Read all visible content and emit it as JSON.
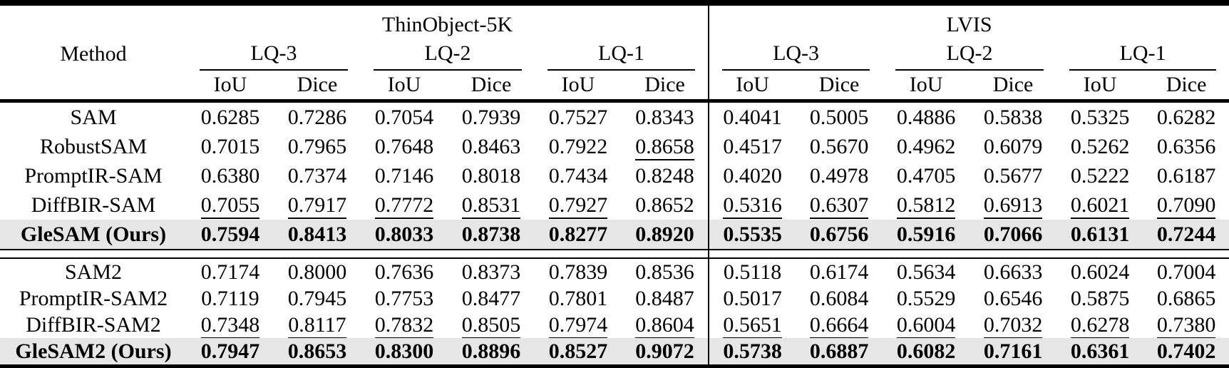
{
  "table": {
    "header": {
      "method": "Method",
      "datasets": [
        {
          "name": "ThinObject-5K"
        },
        {
          "name": "LVIS"
        }
      ],
      "lq_labels": [
        "LQ-3",
        "LQ-2",
        "LQ-1"
      ],
      "metrics": [
        "IoU",
        "Dice"
      ]
    },
    "columns": [
      "thinobject5k-lq3-iou",
      "thinobject5k-lq3-dice",
      "thinobject5k-lq2-iou",
      "thinobject5k-lq2-dice",
      "thinobject5k-lq1-iou",
      "thinobject5k-lq1-dice",
      "lvis-lq3-iou",
      "lvis-lq3-dice",
      "lvis-lq2-iou",
      "lvis-lq2-dice",
      "lvis-lq1-iou",
      "lvis-lq1-dice"
    ],
    "highlight_color": "#e6e6e6",
    "sections": [
      {
        "rows": [
          {
            "method": "SAM",
            "bold": false,
            "highlight": false,
            "underlined": [],
            "values": [
              "0.6285",
              "0.7286",
              "0.7054",
              "0.7939",
              "0.7527",
              "0.8343",
              "0.4041",
              "0.5005",
              "0.4886",
              "0.5838",
              "0.5325",
              "0.6282"
            ]
          },
          {
            "method": "RobustSAM",
            "bold": false,
            "highlight": false,
            "underlined": [
              5
            ],
            "values": [
              "0.7015",
              "0.7965",
              "0.7648",
              "0.8463",
              "0.7922",
              "0.8658",
              "0.4517",
              "0.5670",
              "0.4962",
              "0.6079",
              "0.5262",
              "0.6356"
            ]
          },
          {
            "method": "PromptIR-SAM",
            "bold": false,
            "highlight": false,
            "underlined": [],
            "values": [
              "0.6380",
              "0.7374",
              "0.7146",
              "0.8018",
              "0.7434",
              "0.8248",
              "0.4020",
              "0.4978",
              "0.4705",
              "0.5677",
              "0.5222",
              "0.6187"
            ]
          },
          {
            "method": "DiffBIR-SAM",
            "bold": false,
            "highlight": false,
            "underlined": [
              0,
              1,
              2,
              3,
              4,
              6,
              7,
              8,
              9,
              10,
              11
            ],
            "values": [
              "0.7055",
              "0.7917",
              "0.7772",
              "0.8531",
              "0.7927",
              "0.8652",
              "0.5316",
              "0.6307",
              "0.5812",
              "0.6913",
              "0.6021",
              "0.7090"
            ]
          },
          {
            "method": "GleSAM (Ours)",
            "bold": true,
            "highlight": true,
            "underlined": [],
            "values": [
              "0.7594",
              "0.8413",
              "0.8033",
              "0.8738",
              "0.8277",
              "0.8920",
              "0.5535",
              "0.6756",
              "0.5916",
              "0.7066",
              "0.6131",
              "0.7244"
            ]
          }
        ]
      },
      {
        "rows": [
          {
            "method": "SAM2",
            "bold": false,
            "highlight": false,
            "underlined": [],
            "values": [
              "0.7174",
              "0.8000",
              "0.7636",
              "0.8373",
              "0.7839",
              "0.8536",
              "0.5118",
              "0.6174",
              "0.5634",
              "0.6633",
              "0.6024",
              "0.7004"
            ]
          },
          {
            "method": "PromptIR-SAM2",
            "bold": false,
            "highlight": false,
            "underlined": [],
            "values": [
              "0.7119",
              "0.7945",
              "0.7753",
              "0.8477",
              "0.7801",
              "0.8487",
              "0.5017",
              "0.6084",
              "0.5529",
              "0.6546",
              "0.5875",
              "0.6865"
            ]
          },
          {
            "method": "DiffBIR-SAM2",
            "bold": false,
            "highlight": false,
            "underlined": [
              0,
              1,
              2,
              3,
              4,
              5,
              6,
              7,
              8,
              9,
              10,
              11
            ],
            "values": [
              "0.7348",
              "0.8117",
              "0.7832",
              "0.8505",
              "0.7974",
              "0.8604",
              "0.5651",
              "0.6664",
              "0.6004",
              "0.7032",
              "0.6278",
              "0.7380"
            ]
          },
          {
            "method": "GleSAM2 (Ours)",
            "bold": true,
            "highlight": true,
            "underlined": [],
            "values": [
              "0.7947",
              "0.8653",
              "0.8300",
              "0.8896",
              "0.8527",
              "0.9072",
              "0.5738",
              "0.6887",
              "0.6082",
              "0.7161",
              "0.6361",
              "0.7402"
            ]
          }
        ]
      }
    ]
  }
}
